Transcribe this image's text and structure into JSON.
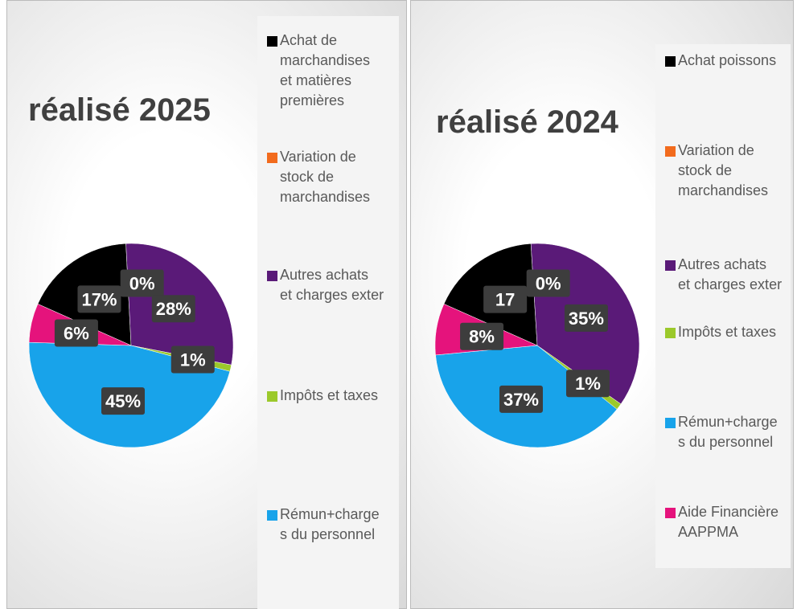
{
  "chart_data": [
    {
      "type": "pie",
      "title": "réalisé 2025",
      "categories": [
        "Achat de marchandises et matières premières",
        "Variation de stock de marchandises",
        "Autres achats et charges exter",
        "Impôts et taxes",
        "Rémun+charges du personnel",
        null
      ],
      "values": [
        17,
        0,
        28,
        1,
        45,
        6
      ],
      "value_labels": [
        "17%",
        "0%",
        "28%",
        "1%",
        "45%",
        "6%"
      ],
      "colors": [
        "#000000",
        "#f26b1d",
        "#5a1a78",
        "#9bc92b",
        "#18a3ea",
        "#e5137c"
      ]
    },
    {
      "type": "pie",
      "title": "réalisé 2024",
      "categories": [
        "Achat poissons",
        "Variation de stock de marchandises",
        "Autres achats et charges exter",
        "Impôts et taxes",
        "Rémun+charges du personnel",
        "Aide Financière AAPPMA"
      ],
      "values": [
        17,
        0,
        35,
        1,
        37,
        8
      ],
      "value_labels": [
        "17",
        "0%",
        "35%",
        "1%",
        "37%",
        "8%"
      ],
      "colors": [
        "#000000",
        "#f26b1d",
        "#5a1a78",
        "#9bc92b",
        "#18a3ea",
        "#e5137c"
      ]
    }
  ]
}
